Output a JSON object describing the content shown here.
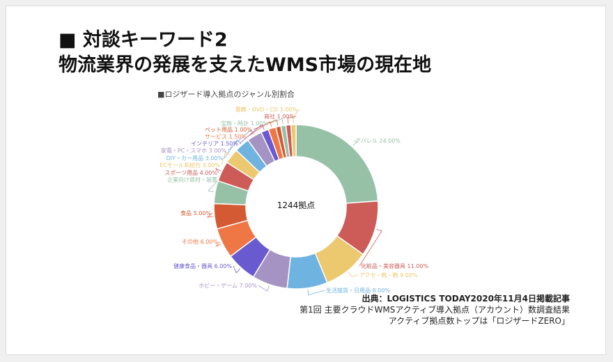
{
  "slide": {
    "title_line1": "■ 対談キーワード2",
    "title_line2": "物流業界の発展を支えたWMS市場の現在地",
    "source_line1": "出典：LOGISTICS TODAY2020年11月4日掲載記事",
    "source_line2": "第1回 主要クラウドWMSアクティブ導入拠点（アカウント）数調査結果",
    "source_line3": "アクティブ拠点数トップは「ロジザードZERO」"
  },
  "chart_data": {
    "type": "pie",
    "title": "■ロジザード導入拠点のジャンル別割合",
    "center_label": "1244拠点",
    "slices": [
      {
        "label": "アパレル 24.00%",
        "value": 24.0,
        "color": "#96c1a7"
      },
      {
        "label": "化粧品・美容器具 11.00%",
        "value": 11.0,
        "color": "#cd5c58"
      },
      {
        "label": "アクセ・靴・鞄 9.00%",
        "value": 9.0,
        "color": "#ecc86f"
      },
      {
        "label": "生活雑貨・日用品 8.00%",
        "value": 8.0,
        "color": "#6fb3e0"
      },
      {
        "label": "ホビー・ゲーム 7.00%",
        "value": 7.0,
        "color": "#a593c4"
      },
      {
        "label": "健康食品・器具 6.00%",
        "value": 6.0,
        "color": "#6a5ad0"
      },
      {
        "label": "その他 6.00%",
        "value": 6.0,
        "color": "#ee7745"
      },
      {
        "label": "食品 5.00%",
        "value": 5.0,
        "color": "#d45a34"
      },
      {
        "label": "企業向け資材・装置",
        "value": 4.5,
        "color": "#96c1a7"
      },
      {
        "label": "スポーツ用品 4.00%",
        "value": 4.0,
        "color": "#cd5c58"
      },
      {
        "label": "ECモール系総合 3.00%",
        "value": 3.0,
        "color": "#ecc86f"
      },
      {
        "label": "DIY・カー用品 3.00%",
        "value": 3.0,
        "color": "#6fb3e0"
      },
      {
        "label": "家電・PC・スマホ 3.00%",
        "value": 3.0,
        "color": "#a593c4"
      },
      {
        "label": "インテリア 1.50%",
        "value": 1.5,
        "color": "#6a5ad0"
      },
      {
        "label": "サービス 1.50%",
        "value": 1.5,
        "color": "#ee7745"
      },
      {
        "label": "ペット用品 1.00%",
        "value": 1.0,
        "color": "#d45a34"
      },
      {
        "label": "宝飾・時計 1.00%",
        "value": 1.0,
        "color": "#96c1a7"
      },
      {
        "label": "商社 1.00%",
        "value": 1.0,
        "color": "#cd5c58"
      },
      {
        "label": "書籍・DVD・CD 1.00%",
        "value": 1.0,
        "color": "#ecc86f"
      }
    ]
  }
}
